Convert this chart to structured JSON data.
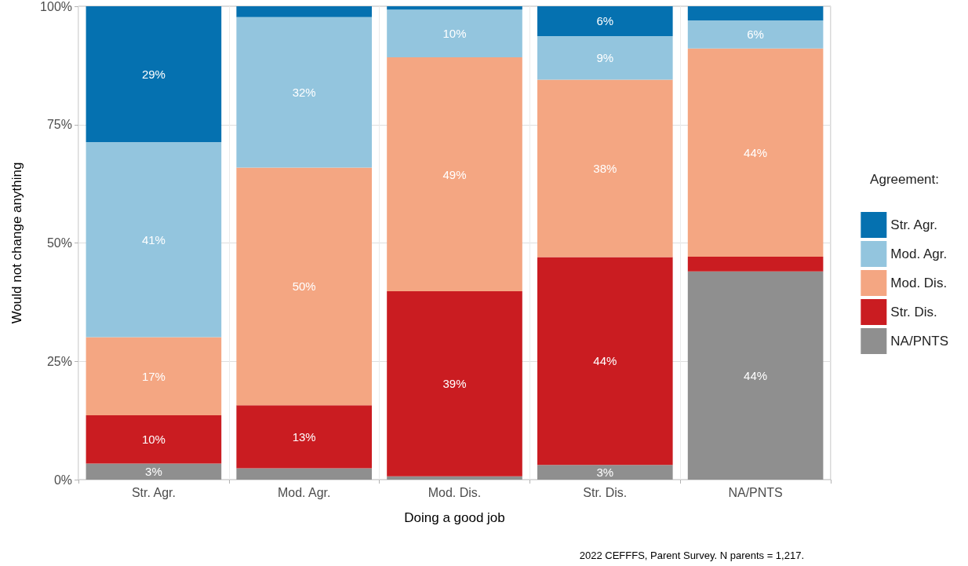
{
  "chart_data": {
    "type": "bar",
    "stacked": true,
    "xlabel": "Doing a good job",
    "ylabel": "Would not change anything",
    "legend_title": "Agreement:",
    "categories": [
      "Str. Agr.",
      "Mod. Agr.",
      "Mod. Dis.",
      "Str. Dis.",
      "NA/PNTS"
    ],
    "series": [
      {
        "name": "NA/PNTS",
        "color": "#8f8f8f",
        "values": [
          3.4,
          2.4,
          0.7,
          3.1,
          44.0
        ],
        "value_labels": [
          "3%",
          null,
          null,
          "3%",
          "44%"
        ]
      },
      {
        "name": "Str. Dis.",
        "color": "#ca1c21",
        "values": [
          10.2,
          13.3,
          39.1,
          43.9,
          3.1
        ],
        "value_labels": [
          "10%",
          "13%",
          "39%",
          "44%",
          null
        ]
      },
      {
        "name": "Mod. Dis.",
        "color": "#f4a682",
        "values": [
          16.5,
          50.2,
          49.4,
          37.5,
          44.0
        ],
        "value_labels": [
          "17%",
          "50%",
          "49%",
          "38%",
          "44%"
        ]
      },
      {
        "name": "Mod. Agr.",
        "color": "#93c5de",
        "values": [
          41.2,
          31.8,
          10.1,
          9.2,
          5.9
        ],
        "value_labels": [
          "41%",
          "32%",
          "10%",
          "9%",
          "6%"
        ]
      },
      {
        "name": "Str. Agr.",
        "color": "#0571b0",
        "values": [
          28.7,
          2.3,
          0.7,
          6.3,
          3.0
        ],
        "value_labels": [
          "29%",
          null,
          null,
          "6%",
          null
        ]
      }
    ],
    "ylim": [
      0,
      100
    ],
    "yticks": [
      {
        "value": 0,
        "label": "0%"
      },
      {
        "value": 25,
        "label": "25%"
      },
      {
        "value": 50,
        "label": "50%"
      },
      {
        "value": 75,
        "label": "75%"
      },
      {
        "value": 100,
        "label": "100%"
      }
    ],
    "grid": true,
    "legend": "right",
    "annotations": [
      "2022 CEFFFS, Parent Survey. N parents = 1,217."
    ]
  }
}
